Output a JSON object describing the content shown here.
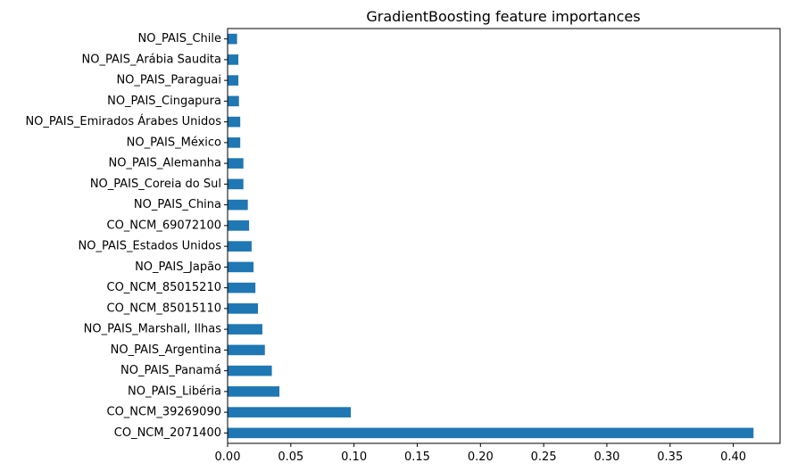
{
  "chart_data": {
    "type": "bar",
    "orientation": "horizontal",
    "title": "GradientBoosting feature importances",
    "xlabel": "",
    "ylabel": "",
    "bar_color": "#1f77b4",
    "xlim": [
      0,
      0.437
    ],
    "xticks": [
      "0.00",
      "0.05",
      "0.10",
      "0.15",
      "0.20",
      "0.25",
      "0.30",
      "0.35",
      "0.40"
    ],
    "categories": [
      "NO_PAIS_Chile",
      "NO_PAIS_Arábia Saudita",
      "NO_PAIS_Paraguai",
      "NO_PAIS_Cingapura",
      "NO_PAIS_Emirados Árabes Unidos",
      "NO_PAIS_México",
      "NO_PAIS_Alemanha",
      "NO_PAIS_Coreia do Sul",
      "NO_PAIS_China",
      "CO_NCM_69072100",
      "NO_PAIS_Estados Unidos",
      "NO_PAIS_Japão",
      "CO_NCM_85015210",
      "CO_NCM_85015110",
      "NO_PAIS_Marshall, Ilhas",
      "NO_PAIS_Argentina",
      "NO_PAIS_Panamá",
      "NO_PAIS_Libéria",
      "CO_NCM_39269090",
      "CO_NCM_2071400"
    ],
    "values": [
      0.0075,
      0.0085,
      0.0085,
      0.009,
      0.01,
      0.01,
      0.0125,
      0.0125,
      0.016,
      0.017,
      0.019,
      0.0205,
      0.022,
      0.024,
      0.0275,
      0.0295,
      0.035,
      0.041,
      0.0975,
      0.416
    ],
    "grid": false,
    "legend": "none"
  }
}
